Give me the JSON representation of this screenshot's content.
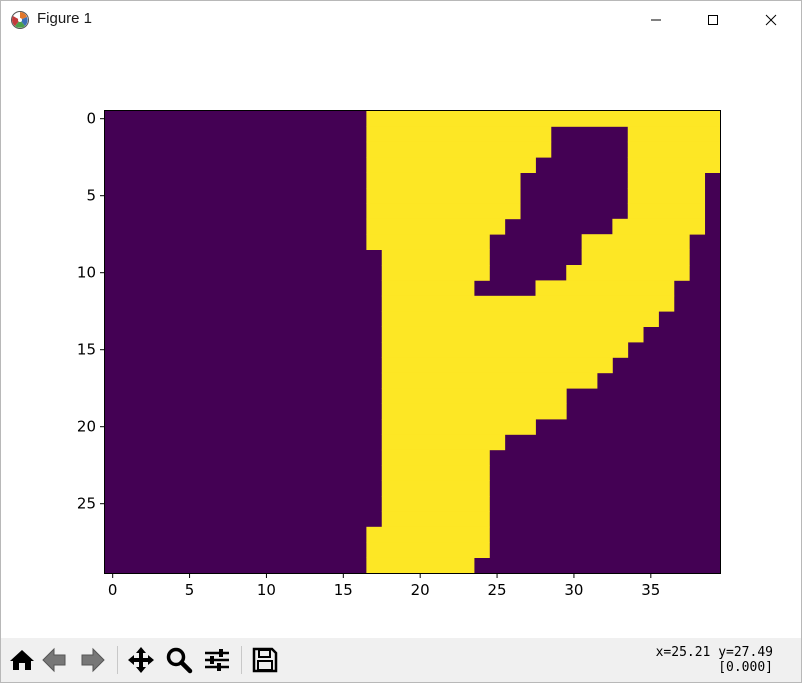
{
  "window": {
    "title": "Figure 1",
    "app_icon": "matplotlib-icon"
  },
  "toolbar": {
    "buttons": [
      {
        "name": "home-button",
        "icon": "home-icon"
      },
      {
        "name": "back-button",
        "icon": "arrow-left-icon"
      },
      {
        "name": "forward-button",
        "icon": "arrow-right-icon"
      },
      {
        "name": "pan-button",
        "icon": "move-icon"
      },
      {
        "name": "zoom-button",
        "icon": "magnifier-icon"
      },
      {
        "name": "configure-subplots-button",
        "icon": "sliders-icon"
      },
      {
        "name": "save-button",
        "icon": "floppy-disk-icon"
      }
    ],
    "coords_line1": "x=25.21 y=27.49",
    "coords_line2": "[0.000]"
  },
  "chart_data": {
    "type": "heatmap",
    "colormap": "viridis",
    "colors": {
      "low": "#440154",
      "high": "#fde725"
    },
    "nrows": 30,
    "ncols": 40,
    "xticks": [
      0,
      5,
      10,
      15,
      20,
      25,
      30,
      35
    ],
    "yticks": [
      0,
      5,
      10,
      15,
      20,
      25
    ],
    "x_range": [
      -0.5,
      39.5
    ],
    "y_range": [
      29.5,
      -0.5
    ],
    "grid": false,
    "yellow_runs_by_row": [
      [
        [
          17,
          39
        ]
      ],
      [
        [
          17,
          28
        ],
        [
          34,
          39
        ]
      ],
      [
        [
          17,
          28
        ],
        [
          34,
          39
        ]
      ],
      [
        [
          17,
          27
        ],
        [
          34,
          39
        ]
      ],
      [
        [
          17,
          26
        ],
        [
          34,
          38
        ]
      ],
      [
        [
          17,
          26
        ],
        [
          34,
          38
        ]
      ],
      [
        [
          17,
          26
        ],
        [
          34,
          38
        ]
      ],
      [
        [
          17,
          25
        ],
        [
          33,
          38
        ]
      ],
      [
        [
          17,
          24
        ],
        [
          31,
          37
        ]
      ],
      [
        [
          18,
          24
        ],
        [
          31,
          37
        ]
      ],
      [
        [
          18,
          24
        ],
        [
          30,
          37
        ]
      ],
      [
        [
          18,
          23
        ],
        [
          28,
          36
        ]
      ],
      [
        [
          18,
          36
        ]
      ],
      [
        [
          18,
          35
        ]
      ],
      [
        [
          18,
          34
        ]
      ],
      [
        [
          18,
          33
        ]
      ],
      [
        [
          18,
          32
        ]
      ],
      [
        [
          18,
          31
        ]
      ],
      [
        [
          18,
          29
        ]
      ],
      [
        [
          18,
          29
        ]
      ],
      [
        [
          18,
          27
        ]
      ],
      [
        [
          18,
          25
        ]
      ],
      [
        [
          18,
          24
        ]
      ],
      [
        [
          18,
          24
        ]
      ],
      [
        [
          18,
          24
        ]
      ],
      [
        [
          18,
          24
        ]
      ],
      [
        [
          18,
          24
        ]
      ],
      [
        [
          17,
          24
        ]
      ],
      [
        [
          17,
          24
        ]
      ],
      [
        [
          17,
          23
        ]
      ]
    ]
  }
}
